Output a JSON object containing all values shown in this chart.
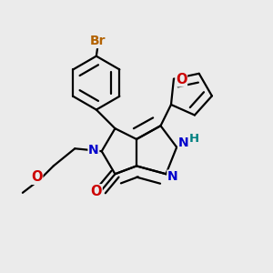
{
  "background_color": "#ebebeb",
  "bond_color": "#000000",
  "bond_width": 1.6,
  "atom_colors": {
    "N": "#0000cc",
    "O": "#cc0000",
    "Br": "#b36200",
    "H": "#008080",
    "C": "#000000"
  }
}
